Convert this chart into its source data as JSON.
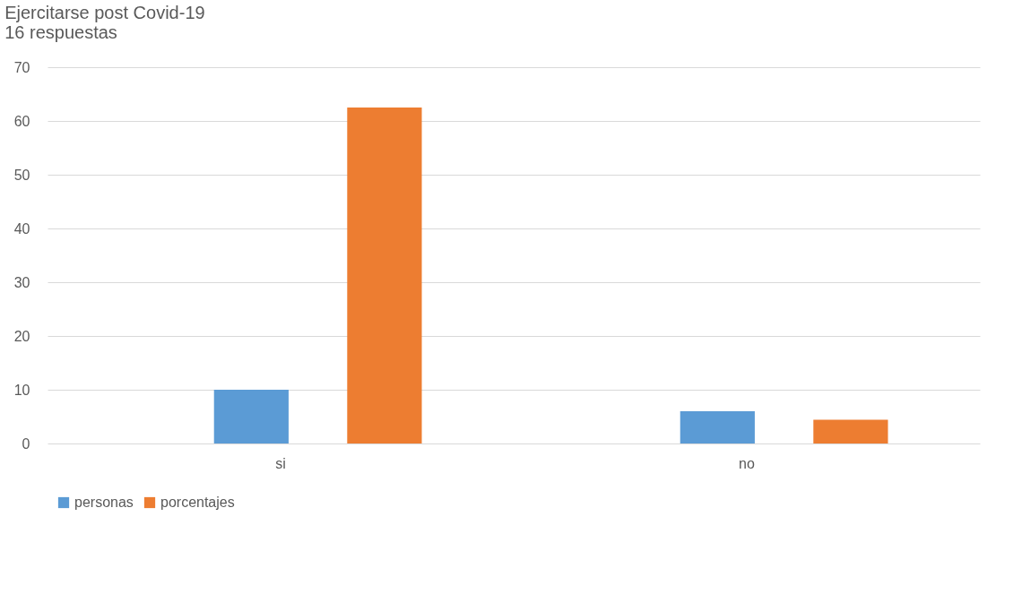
{
  "chart_data": {
    "type": "bar",
    "title": "Ejercitarse post Covid-19",
    "subtitle": "16 respuestas",
    "categories": [
      "si",
      "no"
    ],
    "series": [
      {
        "name": "personas",
        "color": "#5b9bd5",
        "values": [
          10,
          6
        ]
      },
      {
        "name": "porcentajes",
        "color": "#ed7d31",
        "values": [
          62.5,
          4.4
        ]
      }
    ],
    "ylim": [
      0,
      70
    ],
    "yticks": [
      0,
      10,
      20,
      30,
      40,
      50,
      60,
      70
    ],
    "grid": "y",
    "legend": "bottom"
  }
}
